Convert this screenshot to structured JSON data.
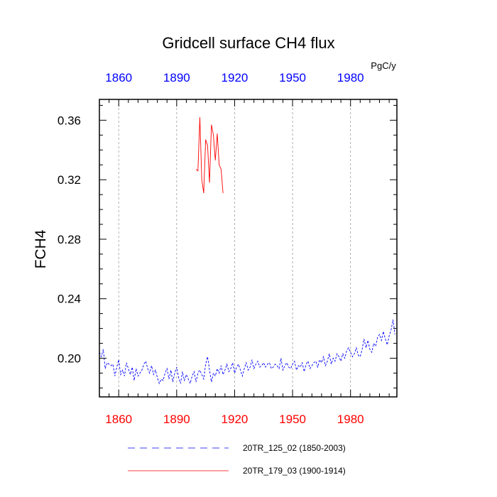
{
  "chart_data": {
    "type": "line",
    "title": "Gridcell surface CH4 flux",
    "ylabel": "FCH4",
    "units": "PgC/y",
    "xlim": [
      1850,
      2004
    ],
    "ylim": [
      0.174,
      0.374
    ],
    "x_ticks": [
      1860,
      1890,
      1920,
      1950,
      1980
    ],
    "x_tick_labels": [
      "1860",
      "1890",
      "1920",
      "1950",
      "1980"
    ],
    "y_ticks": [
      0.2,
      0.24,
      0.28,
      0.32,
      0.36
    ],
    "y_tick_labels": [
      "0.20",
      "0.24",
      "0.28",
      "0.32",
      "0.36"
    ],
    "grid": "vertical dashed at x ticks",
    "colors": {
      "top_axis_labels": "#0000ff",
      "bottom_axis_labels": "#ff0000",
      "series_blue": "#0000ff",
      "series_red": "#ff0000"
    },
    "series": [
      {
        "name": "20TR_125_02 (1850-2003)",
        "style": "dashed",
        "color": "#0000ff",
        "x_start": 1850,
        "values": [
          0.204,
          0.201,
          0.206,
          0.193,
          0.197,
          0.196,
          0.195,
          0.196,
          0.188,
          0.194,
          0.199,
          0.189,
          0.192,
          0.188,
          0.197,
          0.193,
          0.189,
          0.194,
          0.185,
          0.193,
          0.188,
          0.19,
          0.192,
          0.196,
          0.198,
          0.193,
          0.19,
          0.195,
          0.189,
          0.192,
          0.187,
          0.183,
          0.186,
          0.185,
          0.19,
          0.193,
          0.186,
          0.192,
          0.184,
          0.19,
          0.194,
          0.187,
          0.183,
          0.191,
          0.185,
          0.189,
          0.186,
          0.183,
          0.188,
          0.191,
          0.184,
          0.19,
          0.192,
          0.189,
          0.186,
          0.196,
          0.201,
          0.192,
          0.184,
          0.19,
          0.188,
          0.193,
          0.19,
          0.195,
          0.189,
          0.192,
          0.196,
          0.191,
          0.193,
          0.197,
          0.19,
          0.194,
          0.196,
          0.192,
          0.188,
          0.193,
          0.197,
          0.192,
          0.194,
          0.199,
          0.193,
          0.196,
          0.198,
          0.194,
          0.195,
          0.197,
          0.194,
          0.196,
          0.197,
          0.193,
          0.194,
          0.196,
          0.195,
          0.193,
          0.2,
          0.192,
          0.195,
          0.197,
          0.194,
          0.193,
          0.196,
          0.198,
          0.192,
          0.195,
          0.194,
          0.197,
          0.191,
          0.196,
          0.198,
          0.193,
          0.195,
          0.197,
          0.198,
          0.194,
          0.199,
          0.197,
          0.201,
          0.195,
          0.198,
          0.203,
          0.196,
          0.2,
          0.198,
          0.203,
          0.201,
          0.198,
          0.203,
          0.2,
          0.205,
          0.207,
          0.204,
          0.201,
          0.203,
          0.207,
          0.202,
          0.201,
          0.206,
          0.213,
          0.207,
          0.212,
          0.206,
          0.204,
          0.21,
          0.208,
          0.214,
          0.216,
          0.212,
          0.218,
          0.213,
          0.209,
          0.215,
          0.219,
          0.226,
          0.216
        ]
      },
      {
        "name": "20TR_179_03 (1900-1914)",
        "style": "solid",
        "color": "#ff0000",
        "x_start": 1900,
        "values": [
          0.327,
          0.326,
          0.362,
          0.32,
          0.311,
          0.347,
          0.343,
          0.318,
          0.357,
          0.35,
          0.333,
          0.351,
          0.33,
          0.327,
          0.311
        ]
      }
    ]
  }
}
